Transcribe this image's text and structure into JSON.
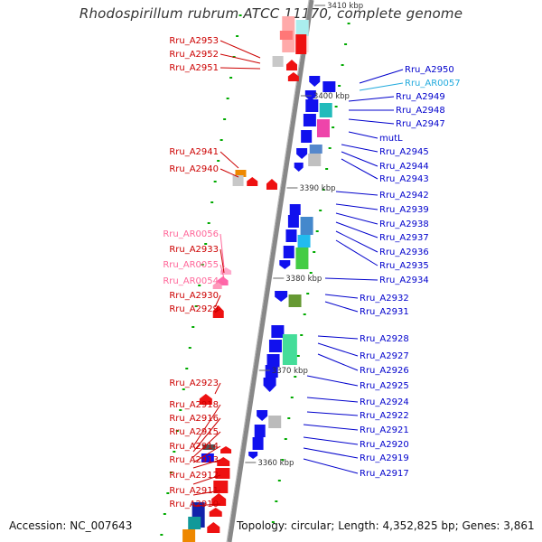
{
  "title": "Rhodospirillum rubrum ATCC 11170, complete genome",
  "footer": {
    "accession": "Accession: NC_007643",
    "info": "Topology: circular; Length: 4,352,825 bp; Genes: 3,861"
  },
  "colors": {
    "left_label": "#cc0000",
    "left_rna_label": "#ff6699",
    "right_label": "#0000cc",
    "right_rna_label": "#22aadd",
    "forward_gene": "#ee1111",
    "reverse_gene": "#1111ee",
    "backbone": "#888888",
    "tick": "#00aa00"
  },
  "scale_labels": [
    "3410 kbp",
    "3400 kbp",
    "3390 kbp",
    "3380 kbp",
    "3370 kbp",
    "3360 kbp"
  ],
  "left_labels": [
    {
      "text": "Rru_A2953",
      "kind": "gene"
    },
    {
      "text": "Rru_A2952",
      "kind": "gene"
    },
    {
      "text": "Rru_A2951",
      "kind": "gene"
    },
    {
      "text": "Rru_A2941",
      "kind": "gene"
    },
    {
      "text": "Rru_A2940",
      "kind": "gene"
    },
    {
      "text": "Rru_AR0056",
      "kind": "rna"
    },
    {
      "text": "Rru_A2933",
      "kind": "gene"
    },
    {
      "text": "Rru_AR0055",
      "kind": "rna"
    },
    {
      "text": "Rru_AR0054",
      "kind": "rna"
    },
    {
      "text": "Rru_A2930",
      "kind": "gene"
    },
    {
      "text": "Rru_A2929",
      "kind": "gene"
    },
    {
      "text": "Rru_A2923",
      "kind": "gene"
    },
    {
      "text": "Rru_A2918",
      "kind": "gene"
    },
    {
      "text": "Rru_A2916",
      "kind": "gene"
    },
    {
      "text": "Rru_A2915",
      "kind": "gene"
    },
    {
      "text": "Rru_A2914",
      "kind": "gene"
    },
    {
      "text": "Rru_A2913",
      "kind": "gene"
    },
    {
      "text": "Rru_A2912",
      "kind": "gene"
    },
    {
      "text": "Rru_A2911",
      "kind": "gene"
    },
    {
      "text": "Rru_A2910",
      "kind": "gene"
    }
  ],
  "right_labels": [
    {
      "text": "Rru_A2950",
      "kind": "gene"
    },
    {
      "text": "Rru_AR0057",
      "kind": "rna"
    },
    {
      "text": "Rru_A2949",
      "kind": "gene"
    },
    {
      "text": "Rru_A2948",
      "kind": "gene"
    },
    {
      "text": "Rru_A2947",
      "kind": "gene"
    },
    {
      "text": "mutL",
      "kind": "gene"
    },
    {
      "text": "Rru_A2945",
      "kind": "gene"
    },
    {
      "text": "Rru_A2944",
      "kind": "gene"
    },
    {
      "text": "Rru_A2943",
      "kind": "gene"
    },
    {
      "text": "Rru_A2942",
      "kind": "gene"
    },
    {
      "text": "Rru_A2939",
      "kind": "gene"
    },
    {
      "text": "Rru_A2938",
      "kind": "gene"
    },
    {
      "text": "Rru_A2937",
      "kind": "gene"
    },
    {
      "text": "Rru_A2936",
      "kind": "gene"
    },
    {
      "text": "Rru_A2935",
      "kind": "gene"
    },
    {
      "text": "Rru_A2934",
      "kind": "gene"
    },
    {
      "text": "Rru_A2932",
      "kind": "gene"
    },
    {
      "text": "Rru_A2931",
      "kind": "gene"
    },
    {
      "text": "Rru_A2928",
      "kind": "gene"
    },
    {
      "text": "Rru_A2927",
      "kind": "gene"
    },
    {
      "text": "Rru_A2926",
      "kind": "gene"
    },
    {
      "text": "Rru_A2925",
      "kind": "gene"
    },
    {
      "text": "Rru_A2924",
      "kind": "gene"
    },
    {
      "text": "Rru_A2922",
      "kind": "gene"
    },
    {
      "text": "Rru_A2921",
      "kind": "gene"
    },
    {
      "text": "Rru_A2920",
      "kind": "gene"
    },
    {
      "text": "Rru_A2919",
      "kind": "gene"
    },
    {
      "text": "Rru_A2917",
      "kind": "gene"
    }
  ]
}
